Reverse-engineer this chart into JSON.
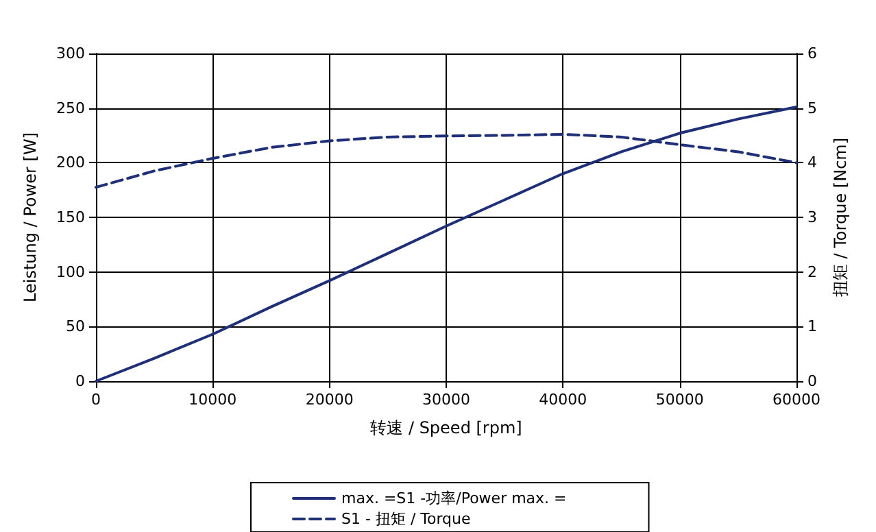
{
  "chart_data": {
    "type": "line",
    "xlabel": "转速 / Speed [rpm]",
    "ylabel": "Leistung / Power [W]",
    "y2label": "扭矩 / Torque [Ncm]",
    "x": [
      0,
      5000,
      10000,
      15000,
      20000,
      25000,
      30000,
      35000,
      40000,
      45000,
      50000,
      55000,
      60000
    ],
    "series": [
      {
        "name": "max. =S1 -功率/Power max. =",
        "color": "#1f2f78",
        "line_style": "solid",
        "values": [
          0,
          21,
          43,
          68,
          92,
          117,
          142,
          166,
          190,
          210,
          227,
          240,
          251
        ]
      },
      {
        "name": "S1 - 扭矩 / Torque",
        "color": "#1f2f78",
        "line_style": "dashed",
        "axis": "y2",
        "values": [
          3.55,
          3.85,
          4.08,
          4.28,
          4.4,
          4.47,
          4.49,
          4.5,
          4.52,
          4.47,
          4.33,
          4.2,
          4.0
        ]
      }
    ],
    "xlim": [
      0,
      60000
    ],
    "xticks": [
      0,
      10000,
      20000,
      30000,
      40000,
      50000,
      60000
    ],
    "ylim": [
      0,
      300
    ],
    "yticks": [
      0,
      50,
      100,
      150,
      200,
      250,
      300
    ],
    "y2lim": [
      0,
      6
    ],
    "y2ticks": [
      0,
      1,
      2,
      3,
      4,
      5,
      6
    ],
    "grid": true,
    "legend": "bottom",
    "marker": "none"
  }
}
